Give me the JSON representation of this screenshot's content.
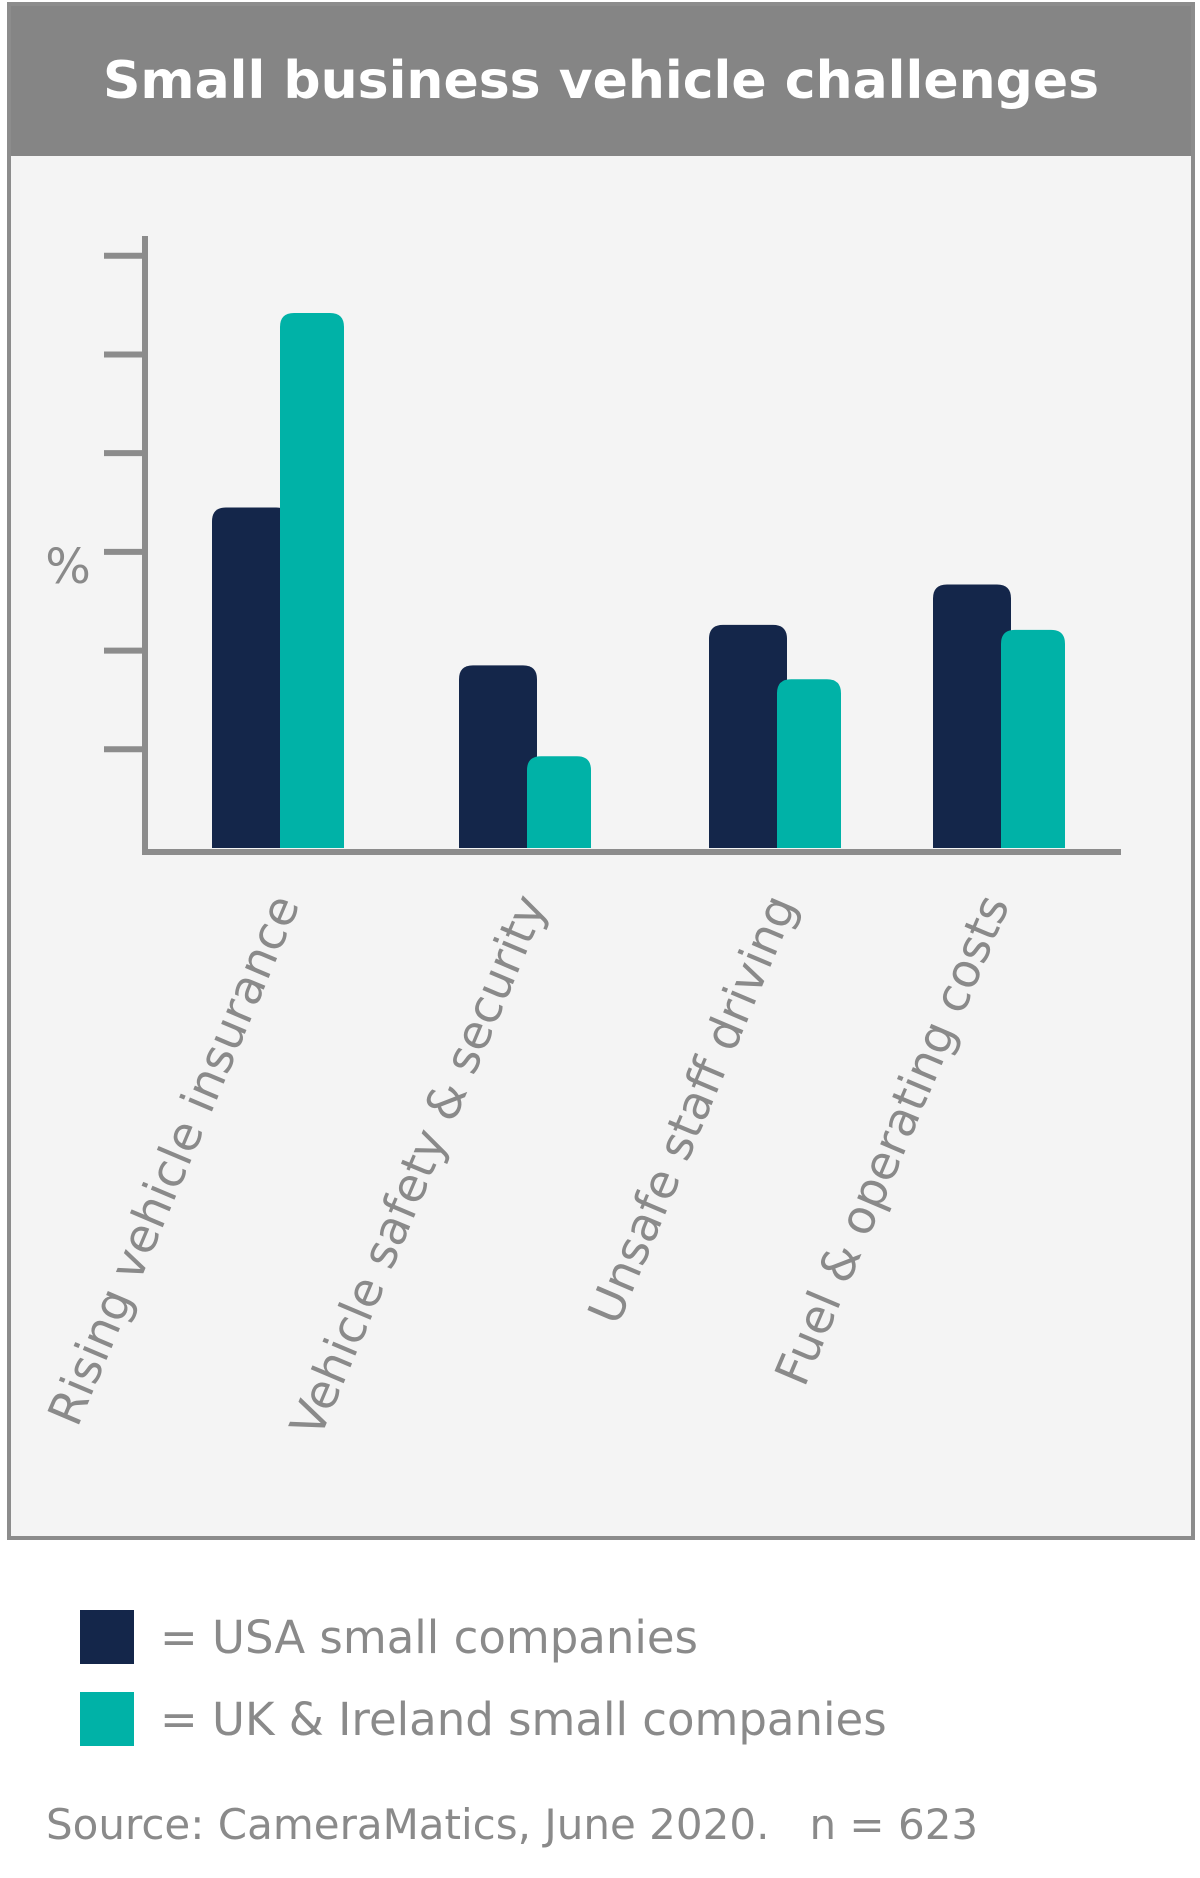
{
  "chart_data": {
    "type": "bar",
    "title": "Small business vehicle challenges",
    "ylabel": "%",
    "xlabel": "",
    "categories": [
      "Rising vehicle insurance",
      "Vehicle safety & security",
      "Unsafe staff driving",
      "Fuel & operating costs"
    ],
    "series": [
      {
        "name": "USA small companies",
        "values": [
          3.45,
          1.85,
          2.26,
          2.67
        ],
        "color": "#14264a"
      },
      {
        "name": "UK & Ireland small companies",
        "values": [
          5.42,
          0.93,
          1.71,
          2.21
        ],
        "color": "#00b2a7"
      }
    ],
    "ylim": [
      0,
      6.2
    ],
    "yticks": [
      0,
      1,
      2,
      3,
      4,
      5,
      6
    ],
    "ytick_labels_shown": false,
    "grid": false,
    "legend_position": "bottom"
  },
  "legend": {
    "items": [
      {
        "label": "= USA small companies",
        "color": "#14264a"
      },
      {
        "label": "= UK & Ireland small companies",
        "color": "#00b2a7"
      }
    ]
  },
  "footer": {
    "source": "Source: CameraMatics, June 2020.   n = 623"
  },
  "colors": {
    "title_bar": "#858585",
    "panel_background": "#f4f4f4",
    "axis": "#8c8c8c",
    "text_muted": "#8a8a8a"
  }
}
